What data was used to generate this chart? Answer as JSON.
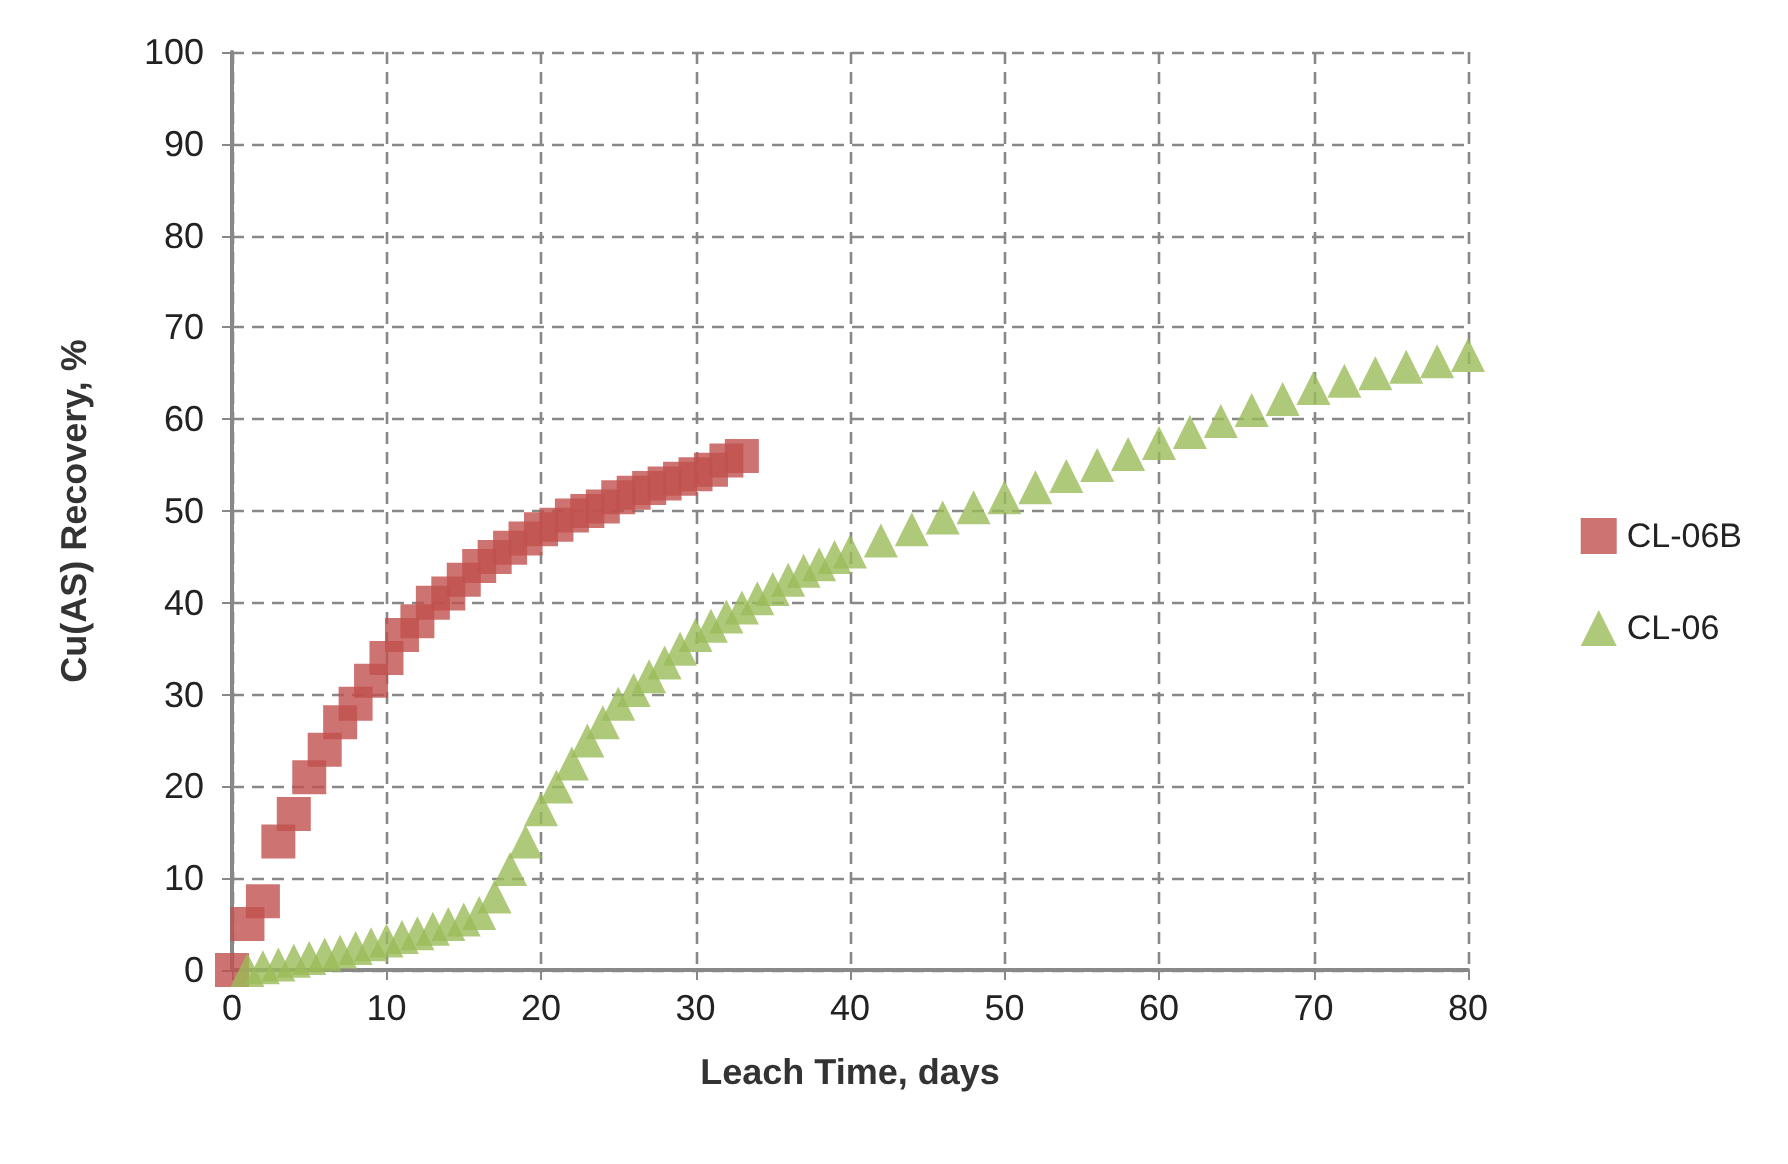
{
  "chart_data": {
    "type": "scatter",
    "xlabel": "Leach Time, days",
    "ylabel": "Cu(AS) Recovery, %",
    "xlim": [
      0,
      80
    ],
    "xticks": [
      0,
      10,
      20,
      30,
      40,
      50,
      60,
      70,
      80
    ],
    "ylim": [
      0,
      100
    ],
    "yticks": [
      0,
      10,
      20,
      30,
      40,
      50,
      60,
      70,
      80,
      90,
      100
    ],
    "grid": true,
    "legend": "right",
    "series": [
      {
        "name": "CL-06B",
        "color": "#c0504d",
        "marker": "square",
        "x": [
          0,
          1,
          2,
          3,
          4,
          5,
          6,
          7,
          8,
          9,
          10,
          11,
          12,
          13,
          14,
          15,
          16,
          17,
          18,
          19,
          20,
          21,
          22,
          23,
          24,
          25,
          26,
          27,
          28,
          29,
          30,
          31,
          32,
          33
        ],
        "values": [
          0,
          5,
          7.5,
          14,
          17,
          21,
          24,
          27,
          29,
          31.5,
          34,
          36.5,
          38,
          40,
          41,
          42.5,
          44,
          45,
          46,
          47,
          48,
          48.5,
          49.5,
          50,
          50.5,
          51.5,
          52,
          52.5,
          53,
          53.5,
          54,
          54.5,
          55.5,
          56
        ]
      },
      {
        "name": "CL-06",
        "color": "#9bbb59",
        "marker": "triangle",
        "x": [
          1,
          2,
          3,
          4,
          5,
          6,
          7,
          8,
          9,
          10,
          11,
          12,
          13,
          14,
          15,
          16,
          17,
          18,
          19,
          20,
          21,
          22,
          23,
          24,
          25,
          26,
          27,
          28,
          29,
          30,
          31,
          32,
          33,
          34,
          35,
          36,
          37,
          38,
          39,
          40,
          42,
          44,
          46,
          48,
          50,
          52,
          54,
          56,
          58,
          60,
          62,
          64,
          66,
          68,
          70,
          72,
          74,
          76,
          78,
          80
        ],
        "values": [
          0,
          0.3,
          0.6,
          1,
          1.3,
          1.7,
          2,
          2.4,
          2.8,
          3.2,
          3.6,
          4,
          4.5,
          5,
          5.5,
          6.2,
          8,
          11,
          14,
          17.5,
          20,
          22.5,
          25,
          27,
          29,
          30.5,
          32,
          33.5,
          35,
          36.5,
          37.5,
          38.5,
          39.5,
          40.5,
          41.5,
          42.5,
          43.5,
          44.2,
          45,
          45.6,
          46.8,
          48,
          49.3,
          50.4,
          51.5,
          52.6,
          53.8,
          55,
          56.2,
          57.4,
          58.6,
          59.8,
          61,
          62.2,
          63.4,
          64.2,
          65,
          65.7,
          66.3,
          67
        ]
      }
    ]
  }
}
